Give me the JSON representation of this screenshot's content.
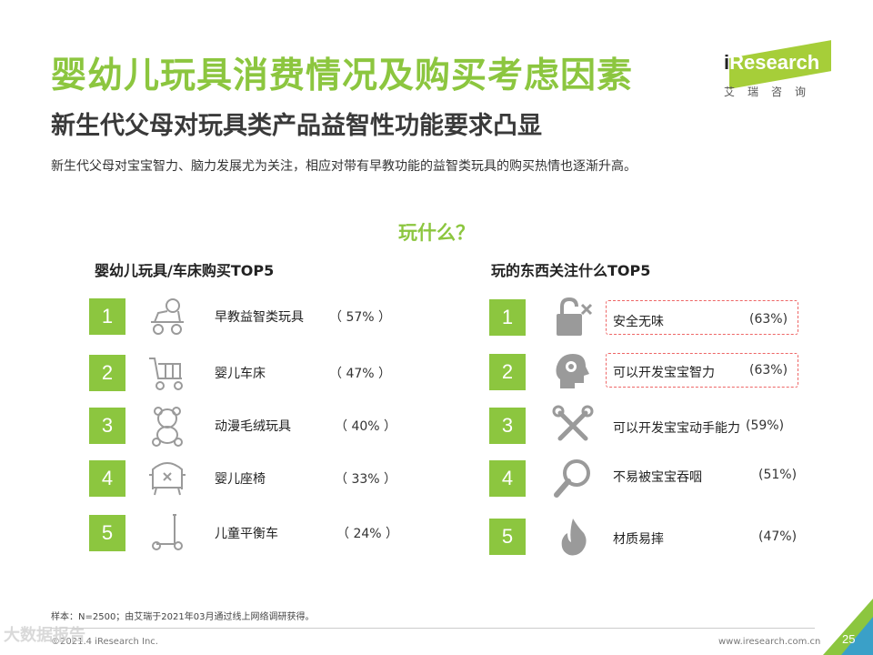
{
  "header": {
    "title": "婴幼儿玩具消费情况及购买考虑因素",
    "subtitle": "新生代父母对玩具类产品益智性功能要求凸显",
    "description": "新生代父母对宝宝智力、脑力发展尤为关注，相应对带有早教功能的益智类玩具的购买热情也逐渐升高。"
  },
  "logo": {
    "brand_i": "i",
    "brand_rest": "Research",
    "sub": "艾瑞咨询"
  },
  "center_question": "玩什么？",
  "left": {
    "heading": "婴幼儿玩具/车床购买TOP5",
    "items": [
      {
        "rank": "1",
        "icon": "rocking-horse-icon",
        "label": "早教益智类玩具",
        "pct": "（ 57% ）"
      },
      {
        "rank": "2",
        "icon": "stroller-icon",
        "label": "婴儿车床",
        "pct": "（ 47% ）"
      },
      {
        "rank": "3",
        "icon": "teddy-bear-icon",
        "label": "动漫毛绒玩具",
        "pct": "（ 40% ）"
      },
      {
        "rank": "4",
        "icon": "baby-seat-icon",
        "label": "婴儿座椅",
        "pct": "（ 33% ）"
      },
      {
        "rank": "5",
        "icon": "balance-bike-icon",
        "label": "儿童平衡车",
        "pct": "（ 24% ）"
      }
    ]
  },
  "right": {
    "heading": "玩的东西关注什么TOP5",
    "items": [
      {
        "rank": "1",
        "icon": "padlock-icon",
        "label": "安全无味",
        "pct": "(63%)",
        "highlight": true
      },
      {
        "rank": "2",
        "icon": "head-gear-icon",
        "label": "可以开发宝宝智力",
        "pct": "(63%)",
        "highlight": true
      },
      {
        "rank": "3",
        "icon": "tools-icon",
        "label": "可以开发宝宝动手能力",
        "pct": "(59%)",
        "highlight": false
      },
      {
        "rank": "4",
        "icon": "magnifier-icon",
        "label": "不易被宝宝吞咽",
        "pct": "(51%)",
        "highlight": false
      },
      {
        "rank": "5",
        "icon": "flame-icon",
        "label": "材质易摔",
        "pct": "(47%)",
        "highlight": false
      }
    ]
  },
  "footer": {
    "note": "样本：N=2500；由艾瑞于2021年03月通过线上网络调研获得。",
    "copyright": "©2021.4 iResearch Inc.",
    "url": "www.iresearch.com.cn",
    "page": "25",
    "watermark": "大数据报告"
  },
  "colors": {
    "accent": "#8cc63f",
    "highlight_border": "#e66666",
    "icon_gray": "#9a9a9a"
  }
}
